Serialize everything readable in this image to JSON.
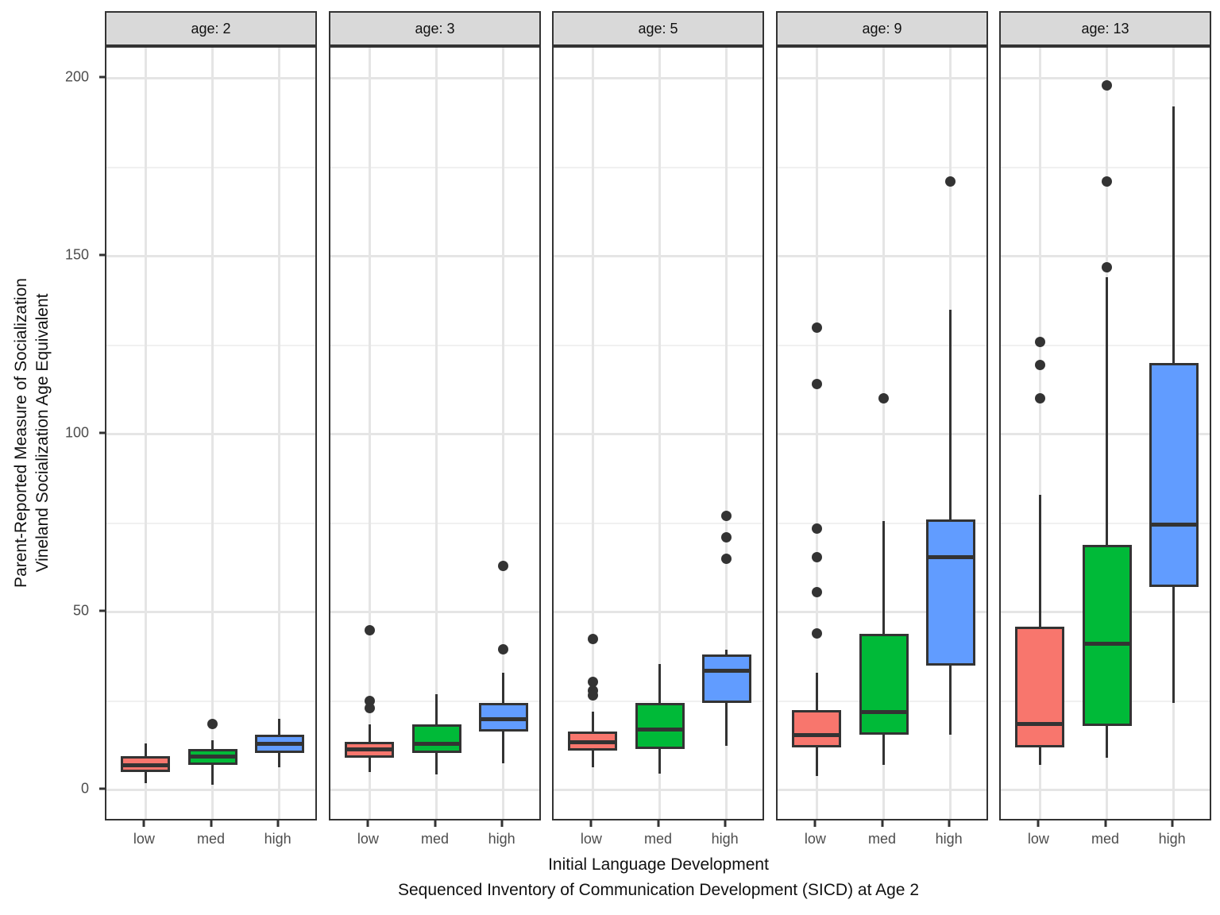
{
  "figure": {
    "y_axis": {
      "title_line1": "Parent-Reported Measure of Socialization",
      "title_line2": "Vineland Socialization Age Equivalent",
      "major_ticks": [
        200,
        150,
        100,
        50,
        0
      ],
      "minor_ticks": [
        175,
        125,
        75,
        25
      ]
    },
    "x_axis": {
      "title_line1": "Initial Language Development",
      "title_line2": "Sequenced Inventory of Communication Development (SICD) at Age 2",
      "categories": [
        "low",
        "med",
        "high"
      ]
    },
    "colors": {
      "low": "#F8766D",
      "med": "#00BA38",
      "high": "#619CFF",
      "stroke": "#333333",
      "strip_bg": "#D9D9D9",
      "grid_major": "#E5E5E5",
      "grid_minor": "#F0F0F0",
      "tick_text": "#4D4D4D"
    }
  },
  "chart_data": {
    "type": "boxplot",
    "title": "",
    "facet_variable": "age",
    "xlabel": "Initial Language Development — Sequenced Inventory of Communication Development (SICD) at Age 2",
    "ylabel": "Parent-Reported Measure of Socialization — Vineland Socialization Age Equivalent",
    "ylim": [
      -9,
      208.6
    ],
    "grid": true,
    "categories": [
      "low",
      "med",
      "high"
    ],
    "facets": [
      {
        "label": "age: 2",
        "boxes": [
          {
            "category": "low",
            "whisker_low": 2,
            "q1": 5,
            "median": 7,
            "q3": 9.5,
            "whisker_high": 13,
            "outliers": []
          },
          {
            "category": "med",
            "whisker_low": 1.5,
            "q1": 7,
            "median": 9.5,
            "q3": 11.5,
            "whisker_high": 14,
            "outliers": [
              18.5
            ]
          },
          {
            "category": "high",
            "whisker_low": 6.5,
            "q1": 10.5,
            "median": 13,
            "q3": 15.5,
            "whisker_high": 20,
            "outliers": []
          }
        ]
      },
      {
        "label": "age: 3",
        "boxes": [
          {
            "category": "low",
            "whisker_low": 5,
            "q1": 9,
            "median": 11.5,
            "q3": 13.5,
            "whisker_high": 18.5,
            "outliers": [
              45,
              25,
              23
            ]
          },
          {
            "category": "med",
            "whisker_low": 4.5,
            "q1": 10.5,
            "median": 13,
            "q3": 18.5,
            "whisker_high": 27,
            "outliers": []
          },
          {
            "category": "high",
            "whisker_low": 7.5,
            "q1": 16.5,
            "median": 20,
            "q3": 24.5,
            "whisker_high": 33,
            "outliers": [
              63,
              39.5
            ]
          }
        ]
      },
      {
        "label": "age: 5",
        "boxes": [
          {
            "category": "low",
            "whisker_low": 6.5,
            "q1": 11,
            "median": 13.5,
            "q3": 16.5,
            "whisker_high": 22,
            "outliers": [
              42.5,
              30.5,
              28,
              26.5
            ]
          },
          {
            "category": "med",
            "whisker_low": 4.5,
            "q1": 11.5,
            "median": 17,
            "q3": 24.5,
            "whisker_high": 35.5,
            "outliers": []
          },
          {
            "category": "high",
            "whisker_low": 12.5,
            "q1": 24.5,
            "median": 33.5,
            "q3": 38,
            "whisker_high": 39.5,
            "outliers": [
              77,
              71,
              65
            ]
          }
        ]
      },
      {
        "label": "age: 9",
        "boxes": [
          {
            "category": "low",
            "whisker_low": 4,
            "q1": 12,
            "median": 15.5,
            "q3": 22.5,
            "whisker_high": 33,
            "outliers": [
              130,
              114,
              73.5,
              65.5,
              55.5,
              44
            ]
          },
          {
            "category": "med",
            "whisker_low": 7,
            "q1": 15.5,
            "median": 22,
            "q3": 44,
            "whisker_high": 75.5,
            "outliers": [
              110
            ]
          },
          {
            "category": "high",
            "whisker_low": 15.5,
            "q1": 35,
            "median": 65.5,
            "q3": 76,
            "whisker_high": 135,
            "outliers": [
              171
            ]
          }
        ]
      },
      {
        "label": "age: 13",
        "boxes": [
          {
            "category": "low",
            "whisker_low": 7,
            "q1": 12,
            "median": 18.5,
            "q3": 46,
            "whisker_high": 83,
            "outliers": [
              126,
              119.5,
              110
            ]
          },
          {
            "category": "med",
            "whisker_low": 9,
            "q1": 18,
            "median": 41,
            "q3": 69,
            "whisker_high": 144,
            "outliers": [
              198,
              171,
              147
            ]
          },
          {
            "category": "high",
            "whisker_low": 24.5,
            "q1": 57,
            "median": 74.5,
            "q3": 120,
            "whisker_high": 192,
            "outliers": []
          }
        ]
      }
    ]
  }
}
